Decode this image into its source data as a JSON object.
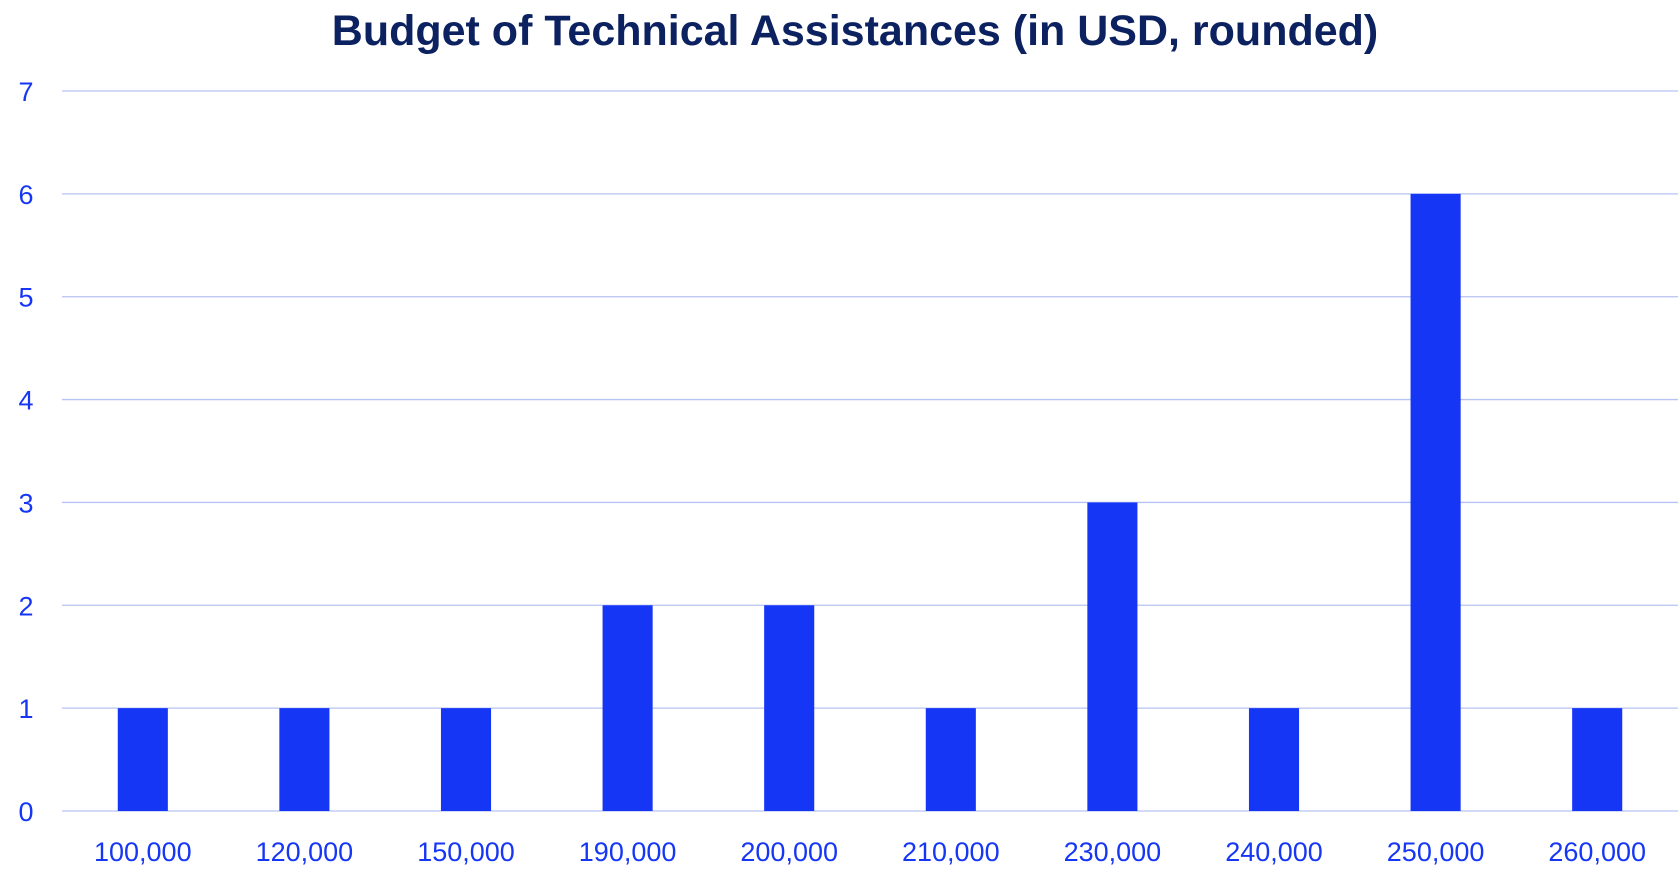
{
  "chart_data": {
    "type": "bar",
    "title": "Budget of Technical Assistances (in USD, rounded)",
    "xlabel": "",
    "ylabel": "",
    "categories": [
      "100,000",
      "120,000",
      "150,000",
      "190,000",
      "200,000",
      "210,000",
      "230,000",
      "240,000",
      "250,000",
      "260,000"
    ],
    "values": [
      1,
      1,
      1,
      2,
      2,
      1,
      3,
      1,
      6,
      1
    ],
    "ylim": [
      0,
      7
    ],
    "yticks": [
      "0",
      "1",
      "2",
      "3",
      "4",
      "5",
      "6",
      "7"
    ],
    "grid": true,
    "legend": "none",
    "colors": {
      "bar": "#1636f5",
      "title": "#0c2160",
      "tick_label": "#1636f5",
      "grid": "#b7c3f2",
      "background": "#ffffff"
    }
  }
}
